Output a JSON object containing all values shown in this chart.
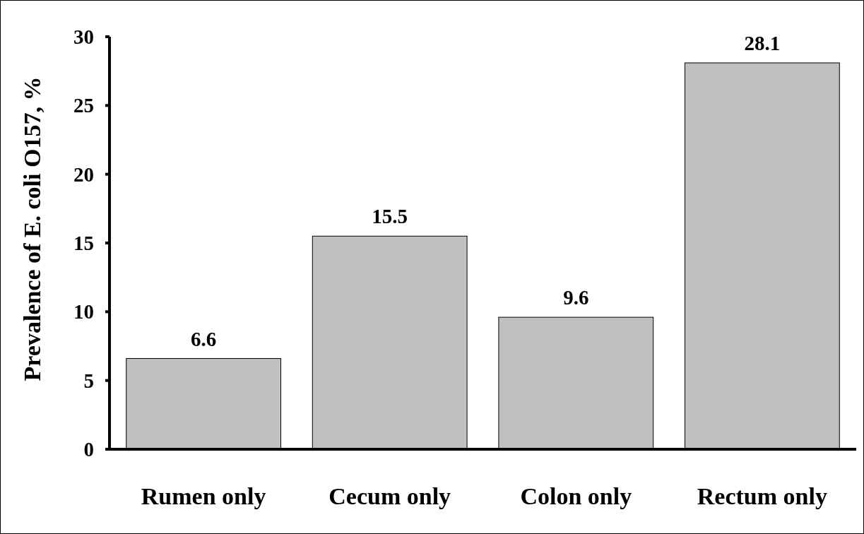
{
  "chart_data": {
    "type": "bar",
    "ylabel": "Prevalence of E. coli O157, %",
    "categories": [
      "Rumen only",
      "Cecum only",
      "Colon only",
      "Rectum only"
    ],
    "values": [
      6.6,
      15.5,
      9.6,
      28.1
    ],
    "color": "#c0c0c0",
    "ylim": [
      0,
      30
    ],
    "yticks": [
      0,
      5,
      10,
      15,
      20,
      25,
      30
    ],
    "grid": false,
    "data_labels": true
  }
}
